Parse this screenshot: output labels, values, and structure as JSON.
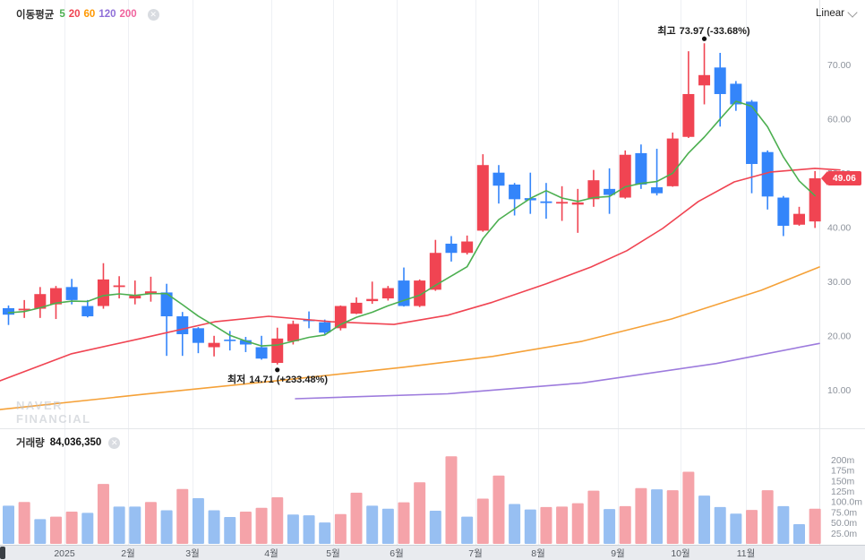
{
  "header": {
    "ma_label": "이동평균",
    "ma_periods": [
      {
        "label": "5",
        "color": "#4caf50"
      },
      {
        "label": "20",
        "color": "#f04452"
      },
      {
        "label": "60",
        "color": "#ff9800"
      },
      {
        "label": "120",
        "color": "#8f6fd8"
      },
      {
        "label": "200",
        "color": "#f0649e"
      }
    ],
    "scale_label": "Linear"
  },
  "volume_header": {
    "label": "거래량",
    "value": "84,036,350"
  },
  "annotations": {
    "high": {
      "label": "최고",
      "value": "73.97",
      "pct": "(-33.68%)"
    },
    "low": {
      "label": "최저",
      "value": "14.71",
      "pct": "(+233.48%)"
    }
  },
  "price_badge": {
    "value": "49.06",
    "color": "#f04452"
  },
  "watermark": {
    "line1": "NAVER",
    "line2": "FINANCIAL"
  },
  "colors": {
    "candle_up": "#f04452",
    "candle_down": "#3485fa",
    "volume_up": "#f5a3a9",
    "volume_down": "#97bff2",
    "ma5": "#4caf50",
    "ma20": "#f04452",
    "ma60": "#f5a138",
    "ma120": "#9d7bdd",
    "grid": "#eef0f4",
    "pane_border": "#e4e7ea",
    "axis_band_bg": "#e9ebef",
    "axis_band_border": "#c9ced4",
    "tick_text": "#8d939c",
    "month_text": "#555a61"
  },
  "chart_data": {
    "type": "candlestick+volume",
    "timeframe": "weekly",
    "price_axis_ticks": [
      [
        "70.00",
        70
      ],
      [
        "60.00",
        60
      ],
      [
        "50.00",
        50
      ],
      [
        "40.00",
        40
      ],
      [
        "30.00",
        30
      ],
      [
        "20.00",
        20
      ],
      [
        "10.00",
        10
      ]
    ],
    "volume_axis_ticks": [
      [
        "200m",
        200
      ],
      [
        "175m",
        175
      ],
      [
        "150m",
        150
      ],
      [
        "125m",
        125
      ],
      [
        "100.0m",
        100
      ],
      [
        "75.0m",
        75
      ],
      [
        "50.0m",
        50
      ],
      [
        "25.0m",
        25
      ]
    ],
    "x_labels": [
      [
        "2025",
        72
      ],
      [
        "2월",
        143
      ],
      [
        "3월",
        215
      ],
      [
        "4월",
        303
      ],
      [
        "5월",
        372
      ],
      [
        "6월",
        443
      ],
      [
        "7월",
        531
      ],
      [
        "8월",
        601
      ],
      [
        "9월",
        690
      ],
      [
        "10월",
        760
      ],
      [
        "11월",
        833
      ]
    ],
    "candles_ohlc": [
      [
        25.1,
        25.6,
        22.0,
        23.9
      ],
      [
        24.7,
        26.6,
        23.3,
        25.0
      ],
      [
        25.0,
        29.0,
        23.3,
        27.7
      ],
      [
        25.8,
        29.2,
        23.1,
        28.8
      ],
      [
        29.0,
        30.5,
        25.8,
        26.6
      ],
      [
        25.5,
        26.6,
        23.4,
        23.6
      ],
      [
        25.5,
        33.4,
        25.0,
        30.4
      ],
      [
        29.0,
        31.0,
        26.9,
        29.3
      ],
      [
        26.9,
        30.2,
        25.8,
        27.4
      ],
      [
        27.7,
        30.9,
        26.3,
        28.2
      ],
      [
        28.0,
        29.6,
        16.3,
        23.6
      ],
      [
        23.6,
        24.4,
        16.3,
        20.3
      ],
      [
        21.4,
        21.6,
        16.8,
        18.7
      ],
      [
        17.9,
        20.0,
        16.2,
        18.7
      ],
      [
        19.3,
        20.9,
        17.3,
        19.1
      ],
      [
        19.2,
        19.8,
        17.0,
        18.4
      ],
      [
        17.9,
        20.0,
        15.6,
        15.8
      ],
      [
        15.0,
        21.5,
        14.71,
        19.5
      ],
      [
        19.0,
        22.8,
        18.4,
        22.2
      ],
      [
        23.0,
        24.5,
        21.4,
        22.7
      ],
      [
        22.5,
        23.0,
        20.3,
        20.6
      ],
      [
        21.4,
        25.6,
        21.0,
        25.5
      ],
      [
        24.1,
        27.1,
        24.0,
        26.1
      ],
      [
        26.4,
        30.0,
        25.9,
        26.8
      ],
      [
        26.9,
        29.2,
        26.5,
        28.8
      ],
      [
        30.2,
        32.6,
        25.4,
        25.5
      ],
      [
        25.5,
        30.4,
        25.3,
        30.2
      ],
      [
        28.5,
        37.7,
        28.3,
        35.3
      ],
      [
        37.0,
        38.4,
        33.7,
        35.3
      ],
      [
        35.3,
        38.5,
        35.0,
        37.4
      ],
      [
        39.4,
        53.5,
        39.2,
        51.5
      ],
      [
        50.1,
        51.5,
        44.4,
        47.7
      ],
      [
        47.9,
        48.2,
        42.2,
        45.2
      ],
      [
        45.4,
        50.1,
        42.5,
        45.0
      ],
      [
        44.8,
        48.2,
        41.6,
        44.5
      ],
      [
        44.4,
        47.6,
        41.2,
        44.7
      ],
      [
        44.2,
        47.1,
        39.0,
        44.6
      ],
      [
        45.2,
        50.6,
        43.8,
        48.7
      ],
      [
        47.1,
        50.9,
        42.5,
        46.0
      ],
      [
        45.5,
        54.2,
        45.3,
        53.4
      ],
      [
        53.7,
        55.3,
        47.1,
        47.9
      ],
      [
        47.4,
        54.5,
        45.9,
        46.3
      ],
      [
        47.6,
        57.5,
        47.5,
        56.4
      ],
      [
        56.7,
        72.5,
        56.5,
        64.6
      ],
      [
        66.2,
        73.97,
        62.7,
        68.1
      ],
      [
        69.5,
        72.2,
        58.6,
        64.6
      ],
      [
        66.5,
        67.0,
        61.5,
        62.7
      ],
      [
        63.2,
        63.5,
        46.3,
        51.7
      ],
      [
        53.9,
        54.2,
        43.3,
        45.7
      ],
      [
        45.5,
        45.8,
        38.4,
        40.3
      ],
      [
        40.5,
        43.8,
        40.3,
        42.5
      ],
      [
        41.1,
        50.4,
        39.9,
        49.06
      ]
    ],
    "volume_values_millions": [
      91,
      100,
      59,
      65,
      77,
      74,
      143,
      89,
      89,
      100,
      80,
      131,
      109,
      80,
      64,
      77,
      86,
      111,
      70,
      68,
      51,
      71,
      122,
      91,
      84,
      99,
      147,
      79,
      209,
      65,
      108,
      163,
      95,
      82,
      88,
      89,
      97,
      127,
      83,
      90,
      133,
      130,
      128,
      172,
      115,
      88,
      72,
      81,
      128,
      90,
      47,
      84
    ],
    "volume_dirs": [
      "d",
      "u",
      "d",
      "u",
      "u",
      "d",
      "u",
      "d",
      "d",
      "u",
      "d",
      "u",
      "d",
      "d",
      "d",
      "u",
      "u",
      "u",
      "d",
      "d",
      "d",
      "u",
      "u",
      "d",
      "d",
      "u",
      "u",
      "d",
      "u",
      "d",
      "u",
      "u",
      "d",
      "d",
      "u",
      "u",
      "u",
      "u",
      "d",
      "u",
      "u",
      "d",
      "u",
      "u",
      "d",
      "d",
      "d",
      "u",
      "u",
      "d",
      "d",
      "u"
    ],
    "ma5_prior_closes": [
      23.8,
      24.2,
      24.5,
      24.8
    ],
    "ma20_points": [
      [
        0,
        11.7
      ],
      [
        80,
        16.7
      ],
      [
        160,
        19.6
      ],
      [
        240,
        22.6
      ],
      [
        300,
        23.6
      ],
      [
        370,
        22.6
      ],
      [
        440,
        22.1
      ],
      [
        500,
        23.8
      ],
      [
        550,
        26.2
      ],
      [
        610,
        29.6
      ],
      [
        660,
        32.7
      ],
      [
        700,
        35.7
      ],
      [
        740,
        39.8
      ],
      [
        780,
        44.8
      ],
      [
        820,
        48.4
      ],
      [
        860,
        50.2
      ],
      [
        910,
        50.9
      ],
      [
        938,
        50.6
      ]
    ],
    "ma60_points": [
      [
        0,
        6.4
      ],
      [
        160,
        9.2
      ],
      [
        320,
        11.9
      ],
      [
        450,
        14.2
      ],
      [
        550,
        16.2
      ],
      [
        650,
        19.0
      ],
      [
        750,
        23.1
      ],
      [
        850,
        28.4
      ],
      [
        915,
        32.7
      ]
    ],
    "ma120_points": [
      [
        330,
        8.4
      ],
      [
        500,
        9.3
      ],
      [
        650,
        11.3
      ],
      [
        800,
        14.9
      ],
      [
        915,
        18.6
      ]
    ],
    "high_marker": {
      "value": 73.97
    },
    "low_marker": {
      "value": 14.71
    },
    "current_price": 49.06,
    "price_ylim": [
      2,
      82
    ],
    "volume_ylim": [
      0,
      215
    ]
  }
}
